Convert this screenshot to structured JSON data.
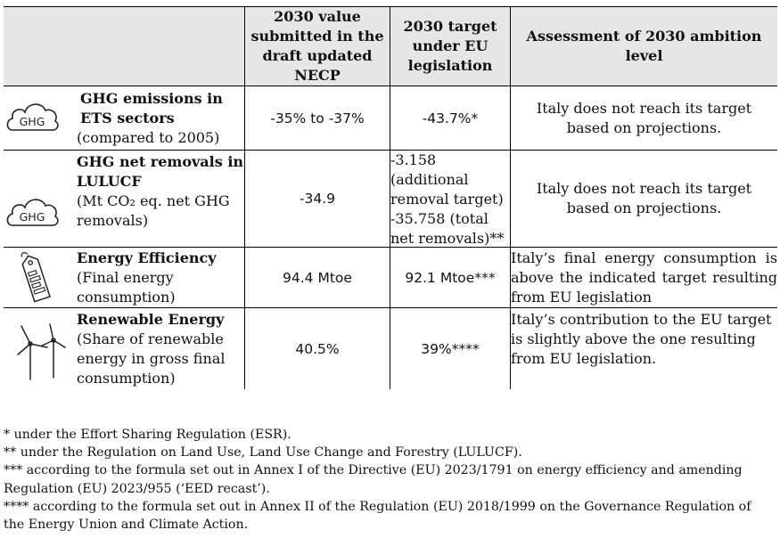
{
  "header": {
    "col_value": "2030 value submitted in the draft updated NECP",
    "col_target": "2030 target under EU legislation",
    "col_assessment": "Assessment of 2030 ambition level"
  },
  "rows": [
    {
      "icon": "ghg-cloud-icon",
      "icon_text": "GHG",
      "title": "GHG emissions in ETS sectors",
      "subtitle": "(compared to 2005)",
      "value": "-35% to -37%",
      "target": "-43.7%*",
      "assessment": "Italy does not reach its target based on projections."
    },
    {
      "icon": "ghg-cloud-icon",
      "icon_text": "GHG",
      "title": "GHG net removals in LULUCF",
      "subtitle": "(Mt CO₂ eq. net GHG removals)",
      "value": "-34.9",
      "target_lines": [
        "-3.158",
        "(additional",
        "removal target)",
        "-35.758 (total",
        "net removals)**"
      ],
      "assessment": "Italy does not reach its target based on projections."
    },
    {
      "icon": "energy-label-tag-icon",
      "title": "Energy Efficiency",
      "subtitle": "(Final energy consumption)",
      "value": "94.4 Mtoe",
      "target": "92.1 Mtoe***",
      "assessment": "Italy’s final energy consumption is above the indicated target resulting from EU legislation"
    },
    {
      "icon": "wind-turbines-icon",
      "title": "Renewable Energy",
      "subtitle": "(Share of renewable energy in gross final consumption)",
      "value": "40.5%",
      "target": "39%****",
      "assessment": "Italy’s contribution to the EU target is slightly above the one resulting from EU legislation."
    }
  ],
  "footnotes": [
    "* under the Effort Sharing Regulation (ESR).",
    "** under the Regulation on Land Use, Land Use Change and Forestry (LULUCF).",
    "*** according to the formula set out in Annex I of the Directive (EU) 2023/1791 on energy efficiency and amending Regulation (EU) 2023/955 (‘EED recast’).",
    "**** according to the formula set out in Annex II of the Regulation (EU) 2018/1999 on the Governance Regulation of the Energy Union and Climate Action."
  ],
  "colors": {
    "header_bg": "#e7e6e6",
    "border": "#000000"
  }
}
